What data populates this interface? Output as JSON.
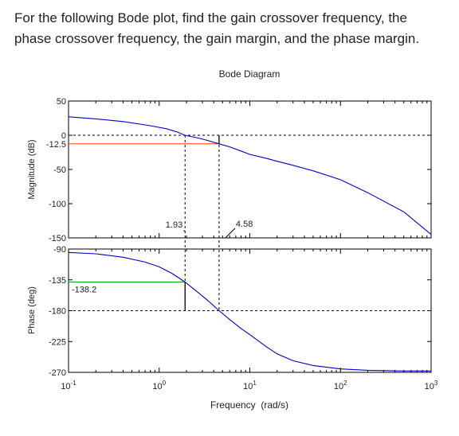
{
  "question": {
    "line1": "For the following Bode plot, find the gain crossover frequency, the",
    "line2": "phase crossover frequency, the gain margin, and the phase margin."
  },
  "colors": {
    "curve": "#0000cc",
    "gain_margin_line": "#ff4400",
    "phase_margin_line": "#00aa00",
    "axes": "#000000",
    "text": "#222222"
  },
  "chart_data": [
    {
      "type": "line",
      "title": "Bode Diagram",
      "xlabel": "",
      "ylabel": "Magnitude (dB)",
      "xscale": "log",
      "xlim": [
        0.1,
        1000
      ],
      "ylim": [
        -150,
        50
      ],
      "yticks": [
        50,
        0,
        -50,
        -100,
        -150
      ],
      "ytick_labels": [
        "50",
        "0",
        "-50",
        "-100",
        "-150"
      ],
      "extra_ytick_label": "-12.5",
      "grid": false,
      "series": [
        {
          "x": [
            0.1,
            0.2,
            0.4,
            0.8,
            1.2,
            1.6,
            1.93,
            2.5,
            3.2,
            4.58,
            6,
            8,
            10,
            15,
            20,
            30,
            50,
            100,
            200,
            500,
            1000
          ],
          "y": [
            27,
            24,
            20,
            14,
            9.5,
            4.5,
            0,
            -3,
            -6.5,
            -12.5,
            -17,
            -23,
            -28,
            -33.5,
            -38,
            -44,
            -52,
            -65,
            -84,
            -112,
            -145
          ]
        }
      ],
      "annotations": [
        {
          "text": "1.93",
          "x": 1.93,
          "y": 0
        },
        {
          "text": "4.58",
          "x": 4.58,
          "y": -12.5
        }
      ]
    },
    {
      "type": "line",
      "xlabel": "Frequency  (rad/s)",
      "ylabel": "Phase (deg)",
      "xscale": "log",
      "xlim": [
        0.1,
        1000
      ],
      "ylim": [
        -270,
        -90
      ],
      "xticks": [
        0.1,
        1,
        10,
        100,
        1000
      ],
      "xtick_bases": [
        "10",
        "10",
        "10",
        "10",
        "10"
      ],
      "xtick_exponents": [
        "-1",
        "0",
        "1",
        "2",
        "3"
      ],
      "yticks": [
        -90,
        -135,
        -180,
        -225,
        -270
      ],
      "ytick_labels": [
        "-90",
        "-135",
        "-180",
        "-225",
        "-270"
      ],
      "grid": false,
      "series": [
        {
          "x": [
            0.1,
            0.2,
            0.4,
            0.7,
            1.0,
            1.4,
            1.93,
            2.5,
            3.5,
            4.58,
            6,
            8,
            10,
            15,
            20,
            30,
            50,
            100,
            200,
            500,
            1000
          ],
          "y": [
            -95,
            -97,
            -102,
            -109,
            -116,
            -126,
            -138.2,
            -150,
            -166,
            -180,
            -193,
            -206,
            -215,
            -232,
            -243,
            -253,
            -260,
            -265,
            -267,
            -268,
            -268
          ]
        }
      ],
      "annotations": [
        {
          "text": "-138.2",
          "x": 0.1,
          "y": -138.2
        }
      ]
    }
  ]
}
